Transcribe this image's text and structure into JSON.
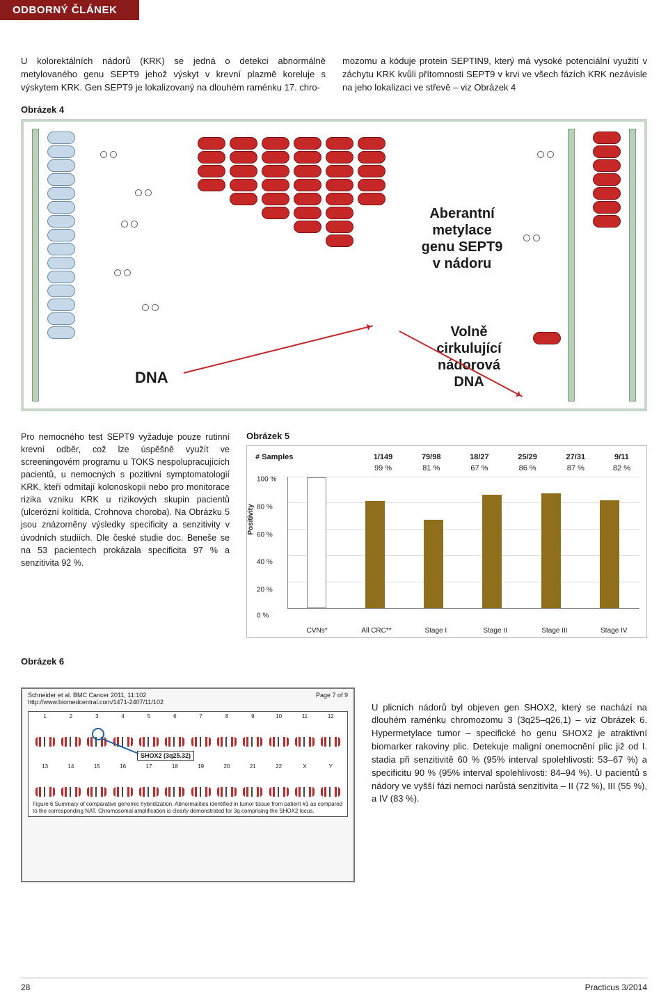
{
  "header": {
    "category": "ODBORNÝ ČLÁNEK"
  },
  "intro": {
    "left": "U kolorektálních nádorů (KRK) se jedná o detekci abnormálně metylovaného genu SEPT9 jehož výskyt v krevní plazmě koreluje s výskytem KRK. Gen SEPT9 je lokalizovaný na dlouhém raménku 17. chro-",
    "right": "mozomu a kóduje protein SEPTIN9, který má vysoké potenciální využití v záchytu KRK kvůli přítomnosti SEPT9 v krvi ve všech fázích KRK nezávisle na jeho lokalizaci ve střevě – viz Obrázek 4"
  },
  "figure4": {
    "label": "Obrázek 4",
    "dna_label": "DNA",
    "annotation1": "Aberantní\nmetylace\ngenu SEPT9\nv nádoru",
    "annotation2": "Volně\ncirkulující\nnádorová\nDNA"
  },
  "midtext": "Pro nemocného test SEPT9 vyžaduje pouze rutinní krevní odběr, což lze úspěšně využít ve screeningovém programu u TOKS nespolupracujících pacientů, u nemocných s pozitivní symptomatologií KRK, kteří odmítají kolonoskopii nebo pro monitorace rizika vzniku KRK u rizikových skupin pacientů (ulcerózní kolitida, Crohnova choroba). Na Obrázku 5 jsou znázorněny výsledky specificity a senzitivity v úvodních studiích. Dle české studie doc. Beneše se na 53 pacientech prokázala specificita 97 % a senzitivita 92 %.",
  "chart5": {
    "label": "Obrázek 5",
    "type": "bar",
    "samples_header": "# Samples",
    "samples": [
      "1/149",
      "79/98",
      "18/27",
      "25/29",
      "27/31",
      "9/11"
    ],
    "percent_labels": [
      "99 %",
      "81 %",
      "67 %",
      "86 %",
      "87 %",
      "82 %"
    ],
    "values": [
      99,
      81,
      67,
      86,
      87,
      82
    ],
    "value_labels_inside": [
      "",
      "81 %",
      "67 %",
      "86 %",
      "87 %",
      "82 %"
    ],
    "categories": [
      "CVNs*",
      "All CRC**",
      "Stage I",
      "Stage II",
      "Stage III",
      "Stage IV"
    ],
    "yticks": [
      0,
      20,
      40,
      60,
      80,
      100
    ],
    "ytick_labels": [
      "0 %",
      "20 %",
      "40 %",
      "60 %",
      "80 %",
      "100 %"
    ],
    "ylim": [
      0,
      100
    ],
    "ylabel": "Positivity",
    "bar_color": "#8f6f1c",
    "grid_color": "#dddddd",
    "first_bar_outline": true
  },
  "figure6": {
    "label": "Obrázek 6",
    "citation": "Schneider et al. BMC Cancer 2011, 11:102",
    "url": "http://www.biomedcentral.com/1471-2407/11/102",
    "page": "Page 7 of 9",
    "shox_label": "SHOX2 (3q25.32)",
    "caption": "Figure 6 Summary of comparative genomic hybridization. Abnormalities identified in tumor tissue from patient #1 as compared to the corresponding NAT. Chromosomal amplification is clearly demonstrated for 3q comprising the SHOX2 locus.",
    "chromosomes_row1": [
      "1",
      "2",
      "3",
      "4",
      "5",
      "6",
      "7",
      "8",
      "9",
      "10",
      "11",
      "12"
    ],
    "chromosomes_row2": [
      "13",
      "14",
      "15",
      "16",
      "17",
      "18",
      "19",
      "20",
      "21",
      "22",
      "X",
      "Y"
    ]
  },
  "fig6_text": "U plicních nádorů byl objeven gen SHOX2, který se nachází na dlouhém raménku chromozomu 3 (3q25–q26,1) – viz Obrázek 6. Hypermetylace tumor – specifické ho genu SHOX2 je atraktivní biomarker rakoviny plic. Detekuje maligní onemocnění plic již od I. stadia při senzitivitě 60 % (95% interval spolehlivosti: 53–67 %) a specificitu 90 % (95% interval spolehlivosti: 84–94 %). U pacientů s nádory ve vyšší fázi nemoci narůstá senzitivita – II (72 %), III (55 %), a IV (83 %).",
  "footer": {
    "page": "28",
    "journal": "Practicus 3/2014"
  }
}
